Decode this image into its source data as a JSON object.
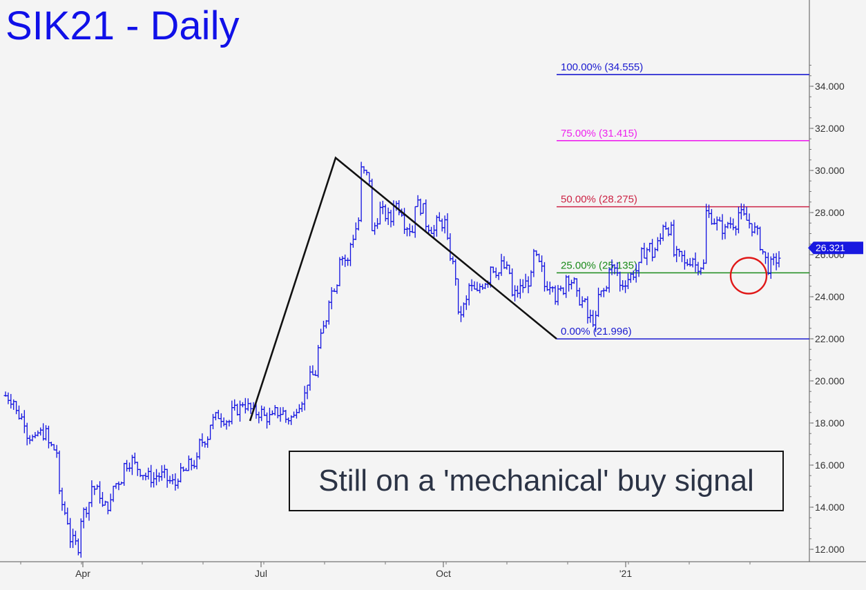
{
  "title": "SIK21 - Daily",
  "annotation": "Still on a 'mechanical' buy signal",
  "chart_data": {
    "type": "ohlc",
    "ylim": [
      11.5,
      37.0
    ],
    "y_ticks": [
      "12.000",
      "14.000",
      "16.000",
      "18.000",
      "20.000",
      "22.000",
      "24.000",
      "26.000",
      "28.000",
      "30.000",
      "32.000",
      "34.000"
    ],
    "x_ticks": [
      "Apr",
      "Jul",
      "Oct",
      "'21"
    ],
    "last_price": "26.321",
    "fib_levels": [
      {
        "label": "100.00% (34.555)",
        "value": 34.555,
        "color": "#1a1ad0"
      },
      {
        "label": "75.00% (31.415)",
        "value": 31.415,
        "color": "#ee22ee"
      },
      {
        "label": "50.00% (28.275)",
        "value": 28.275,
        "color": "#cc2244"
      },
      {
        "label": "25.00% (25.135)",
        "value": 25.135,
        "color": "#1a8a1a"
      },
      {
        "label": "0.00% (21.996)",
        "value": 21.996,
        "color": "#1a1ad0"
      }
    ],
    "abc_pattern": [
      {
        "date": "late Jun",
        "value": 18.1
      },
      {
        "date": "early Aug",
        "value": 30.6
      },
      {
        "date": "Nov",
        "value": 22.0
      }
    ],
    "circle_marker": {
      "date": "Mar '21",
      "value": 25.0
    },
    "price_path": [
      [
        19.3,
        19.0
      ],
      [
        18.5,
        18.0
      ],
      [
        17.5,
        17.0
      ],
      [
        17.5,
        17.5
      ],
      [
        17.0,
        16.5
      ],
      [
        14.5,
        13.0
      ],
      [
        12.5,
        12.0
      ],
      [
        13.5,
        14.5
      ],
      [
        15.0,
        14.5
      ],
      [
        14.0,
        14.2
      ],
      [
        15.0,
        15.5
      ],
      [
        16.0,
        16.3
      ],
      [
        16.0,
        15.5
      ],
      [
        15.5,
        15.3
      ],
      [
        15.5,
        15.5
      ],
      [
        15.3,
        15.0
      ],
      [
        15.5,
        15.8
      ],
      [
        16.0,
        16.2
      ],
      [
        17.0,
        17.5
      ],
      [
        18.0,
        18.5
      ],
      [
        18.3,
        18.0
      ],
      [
        18.5,
        18.8
      ],
      [
        19.0,
        18.5
      ],
      [
        18.5,
        18.5
      ],
      [
        18.3,
        18.2
      ],
      [
        18.5,
        18.5
      ],
      [
        18.2,
        18.3
      ],
      [
        18.8,
        19.5
      ],
      [
        20.0,
        20.5
      ],
      [
        21.5,
        23.5
      ],
      [
        24.0,
        25.0
      ],
      [
        26.0,
        25.5
      ],
      [
        26.5,
        28.0
      ],
      [
        30.0,
        29.5
      ],
      [
        27.0,
        28.5
      ],
      [
        28.0,
        27.5
      ],
      [
        28.5,
        28.0
      ],
      [
        27.5,
        27.0
      ],
      [
        28.5,
        28.0
      ],
      [
        27.5,
        27.0
      ],
      [
        27.5,
        27.5
      ],
      [
        26.5,
        24.5
      ],
      [
        23.0,
        24.0
      ],
      [
        24.5,
        24.0
      ],
      [
        24.5,
        25.0
      ],
      [
        25.5,
        25.0
      ],
      [
        25.5,
        25.0
      ],
      [
        24.0,
        24.5
      ],
      [
        24.5,
        25.0
      ],
      [
        26.0,
        25.0
      ],
      [
        24.5,
        24.8
      ],
      [
        24.0,
        24.5
      ],
      [
        25.0,
        24.5
      ],
      [
        24.0,
        23.5
      ],
      [
        23.0,
        22.8
      ],
      [
        24.0,
        24.5
      ],
      [
        25.5,
        25.0
      ],
      [
        24.5,
        25.0
      ],
      [
        25.0,
        25.5
      ],
      [
        26.0,
        26.5
      ],
      [
        26.0,
        27.0
      ],
      [
        27.5,
        27.0
      ],
      [
        26.0,
        25.8
      ],
      [
        25.5,
        26.0
      ],
      [
        25.5,
        25.5
      ],
      [
        28.0,
        27.5
      ],
      [
        27.5,
        27.0
      ],
      [
        27.5,
        27.5
      ],
      [
        28.0,
        27.5
      ],
      [
        27.5,
        26.8
      ],
      [
        26.5,
        25.0
      ],
      [
        25.5,
        26.0
      ]
    ]
  }
}
